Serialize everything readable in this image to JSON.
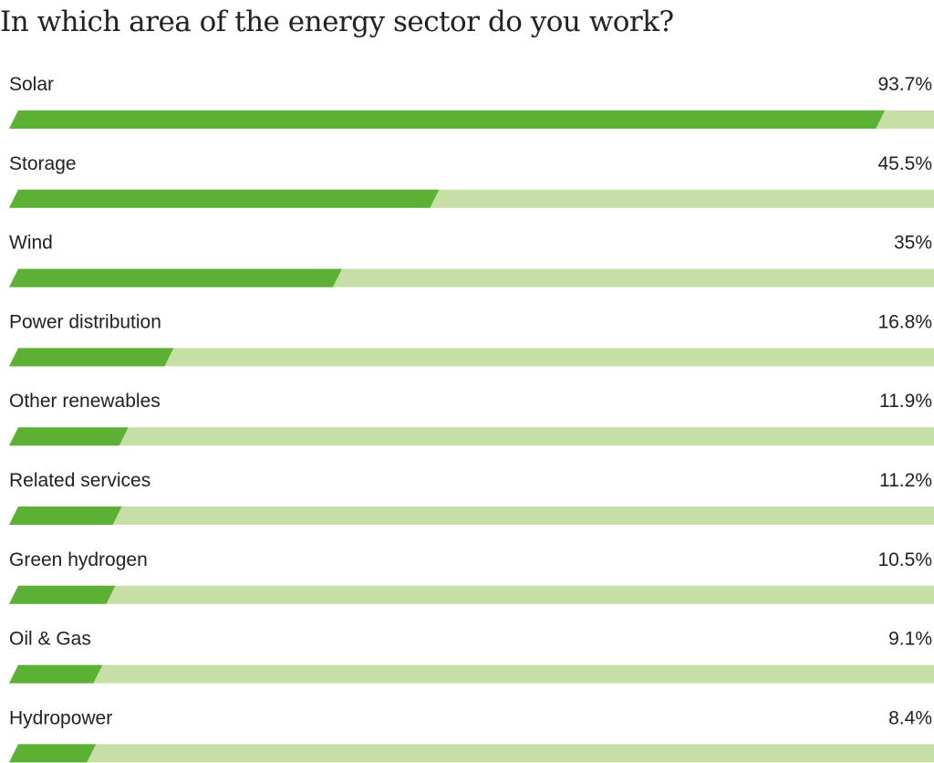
{
  "title": "In which area of the energy sector do you work?",
  "colors": {
    "fill": "#5cb135",
    "track": "#c5dfa6",
    "text": "#222222"
  },
  "chart_data": {
    "type": "bar",
    "orientation": "horizontal",
    "title": "In which area of the energy sector do you work?",
    "xlim": [
      0,
      100
    ],
    "unit": "%",
    "grid": false,
    "categories": [
      "Solar",
      "Storage",
      "Wind",
      "Power distribution",
      "Other renewables",
      "Related services",
      "Green hydrogen",
      "Oil & Gas",
      "Hydropower"
    ],
    "values": [
      93.7,
      45.5,
      35,
      16.8,
      11.9,
      11.2,
      10.5,
      9.1,
      8.4
    ],
    "value_labels": [
      "93.7%",
      "45.5%",
      "35%",
      "16.8%",
      "11.9%",
      "11.2%",
      "10.5%",
      "9.1%",
      "8.4%"
    ]
  }
}
